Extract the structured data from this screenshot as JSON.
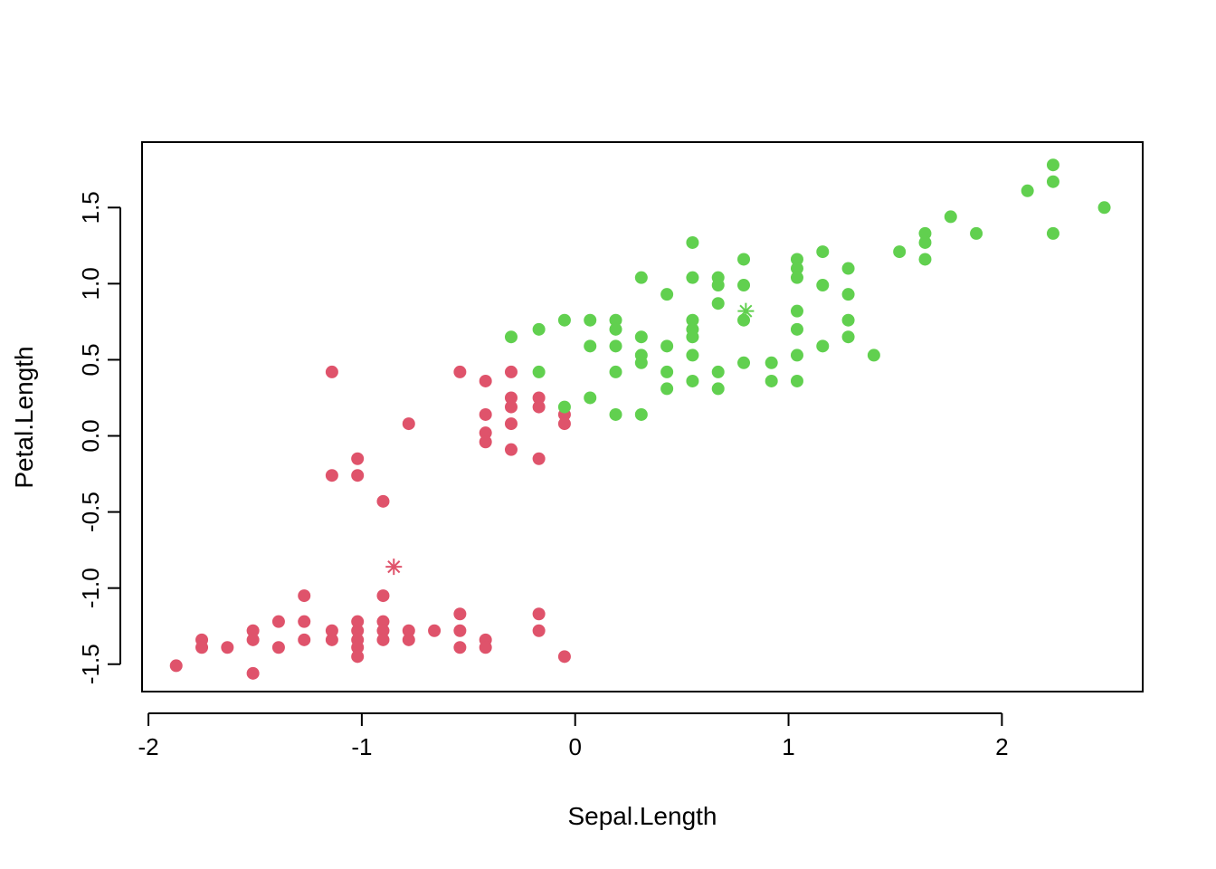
{
  "chart_data": {
    "type": "scatter",
    "title": "",
    "xlabel": "Sepal.Length",
    "ylabel": "Petal.Length",
    "xlim": [
      -2.03,
      2.66
    ],
    "ylim": [
      -1.68,
      1.93
    ],
    "x_ticks": [
      -2,
      -1,
      0,
      1,
      2
    ],
    "x_tick_labels": [
      "-2",
      "-1",
      "0",
      "1",
      "2"
    ],
    "y_ticks": [
      -1.5,
      -1.0,
      -0.5,
      0.0,
      0.5,
      1.0,
      1.5
    ],
    "y_tick_labels": [
      "-1.5",
      "-1.0",
      "-0.5",
      "0.0",
      "0.5",
      "1.0",
      "1.5"
    ],
    "grid": false,
    "legend": "none",
    "series": [
      {
        "color": "#DF536B",
        "points": [
          [
            -1.87,
            -1.51
          ],
          [
            -1.75,
            -1.34
          ],
          [
            -1.75,
            -1.39
          ],
          [
            -1.63,
            -1.39
          ],
          [
            -1.51,
            -1.28
          ],
          [
            -1.51,
            -1.34
          ],
          [
            -1.51,
            -1.56
          ],
          [
            -1.39,
            -1.22
          ],
          [
            -1.39,
            -1.39
          ],
          [
            -1.27,
            -1.05
          ],
          [
            -1.27,
            -1.22
          ],
          [
            -1.27,
            -1.34
          ],
          [
            -1.14,
            -1.28
          ],
          [
            -1.14,
            -1.34
          ],
          [
            -1.02,
            -1.22
          ],
          [
            -1.02,
            -1.28
          ],
          [
            -1.02,
            -1.34
          ],
          [
            -1.02,
            -1.39
          ],
          [
            -1.02,
            -1.45
          ],
          [
            -0.9,
            -1.05
          ],
          [
            -0.9,
            -1.22
          ],
          [
            -0.9,
            -1.28
          ],
          [
            -0.9,
            -1.34
          ],
          [
            -0.78,
            -1.28
          ],
          [
            -0.78,
            -1.34
          ],
          [
            -0.66,
            -1.28
          ],
          [
            -0.54,
            -1.17
          ],
          [
            -0.54,
            -1.28
          ],
          [
            -0.54,
            -1.39
          ],
          [
            -0.42,
            -1.34
          ],
          [
            -0.42,
            -1.39
          ],
          [
            -0.17,
            -1.17
          ],
          [
            -0.17,
            -1.28
          ],
          [
            -0.05,
            -1.45
          ],
          [
            -1.14,
            0.42
          ],
          [
            -1.14,
            -0.26
          ],
          [
            -1.02,
            -0.15
          ],
          [
            -1.02,
            -0.26
          ],
          [
            -0.9,
            -0.43
          ],
          [
            -0.78,
            0.08
          ],
          [
            -0.54,
            0.42
          ],
          [
            -0.42,
            0.36
          ],
          [
            -0.42,
            0.14
          ],
          [
            -0.42,
            0.02
          ],
          [
            -0.42,
            -0.04
          ],
          [
            -0.3,
            0.42
          ],
          [
            -0.3,
            0.25
          ],
          [
            -0.3,
            0.19
          ],
          [
            -0.3,
            0.08
          ],
          [
            -0.3,
            -0.09
          ],
          [
            -0.17,
            0.25
          ],
          [
            -0.17,
            0.19
          ],
          [
            -0.17,
            -0.15
          ],
          [
            -0.05,
            0.14
          ],
          [
            -0.05,
            0.08
          ]
        ],
        "center": [
          -0.85,
          -0.86
        ]
      },
      {
        "color": "#61D04F",
        "points": [
          [
            -0.3,
            0.65
          ],
          [
            -0.17,
            0.7
          ],
          [
            -0.17,
            0.42
          ],
          [
            -0.05,
            0.76
          ],
          [
            -0.05,
            0.19
          ],
          [
            0.07,
            0.76
          ],
          [
            0.07,
            0.59
          ],
          [
            0.07,
            0.25
          ],
          [
            0.19,
            0.76
          ],
          [
            0.19,
            0.7
          ],
          [
            0.19,
            0.59
          ],
          [
            0.19,
            0.42
          ],
          [
            0.19,
            0.14
          ],
          [
            0.31,
            1.04
          ],
          [
            0.31,
            0.65
          ],
          [
            0.31,
            0.53
          ],
          [
            0.31,
            0.48
          ],
          [
            0.31,
            0.14
          ],
          [
            0.43,
            0.93
          ],
          [
            0.43,
            0.59
          ],
          [
            0.43,
            0.42
          ],
          [
            0.43,
            0.31
          ],
          [
            0.55,
            1.27
          ],
          [
            0.55,
            1.04
          ],
          [
            0.55,
            0.76
          ],
          [
            0.55,
            0.7
          ],
          [
            0.55,
            0.65
          ],
          [
            0.55,
            0.53
          ],
          [
            0.55,
            0.36
          ],
          [
            0.67,
            1.04
          ],
          [
            0.67,
            0.99
          ],
          [
            0.67,
            0.87
          ],
          [
            0.67,
            0.42
          ],
          [
            0.67,
            0.31
          ],
          [
            0.79,
            1.16
          ],
          [
            0.79,
            0.99
          ],
          [
            0.79,
            0.76
          ],
          [
            0.79,
            0.48
          ],
          [
            0.92,
            0.48
          ],
          [
            0.92,
            0.36
          ],
          [
            1.04,
            1.16
          ],
          [
            1.04,
            1.1
          ],
          [
            1.04,
            1.04
          ],
          [
            1.04,
            0.82
          ],
          [
            1.04,
            0.7
          ],
          [
            1.04,
            0.53
          ],
          [
            1.04,
            0.36
          ],
          [
            1.16,
            1.21
          ],
          [
            1.16,
            0.99
          ],
          [
            1.16,
            0.59
          ],
          [
            1.28,
            1.1
          ],
          [
            1.28,
            0.93
          ],
          [
            1.28,
            0.76
          ],
          [
            1.28,
            0.65
          ],
          [
            1.4,
            0.53
          ],
          [
            1.52,
            1.21
          ],
          [
            1.64,
            1.33
          ],
          [
            1.64,
            1.27
          ],
          [
            1.64,
            1.16
          ],
          [
            1.76,
            1.44
          ],
          [
            1.88,
            1.33
          ],
          [
            2.12,
            1.61
          ],
          [
            2.24,
            1.78
          ],
          [
            2.24,
            1.67
          ],
          [
            2.24,
            1.33
          ],
          [
            2.48,
            1.5
          ]
        ],
        "center": [
          0.8,
          0.82
        ]
      }
    ]
  }
}
